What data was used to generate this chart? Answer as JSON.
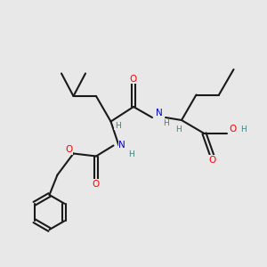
{
  "bg_color": "#e8e8e8",
  "bond_color": "#1a1a1a",
  "bond_lw": 1.5,
  "atom_colors": {
    "O": "#ff0000",
    "N": "#0000cc",
    "H": "#408080",
    "C": "#1a1a1a"
  },
  "font_size": 7.5
}
